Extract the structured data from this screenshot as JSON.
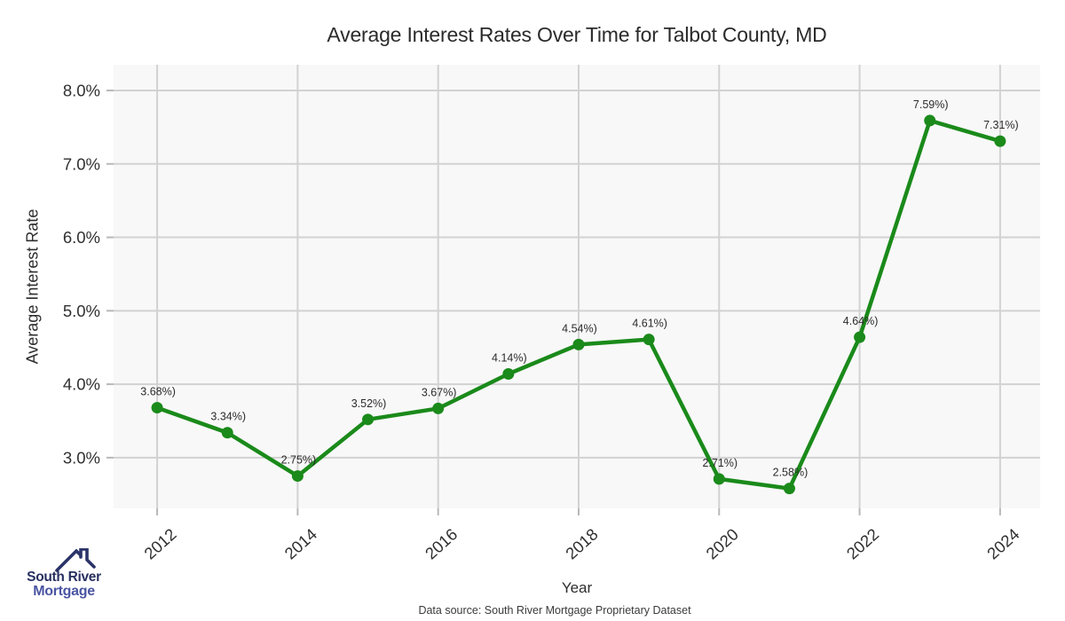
{
  "chart_data": {
    "type": "line",
    "title": "Average Interest Rates Over Time for Talbot County, MD",
    "xlabel": "Year",
    "ylabel": "Average Interest Rate",
    "x": [
      2012,
      2013,
      2014,
      2015,
      2016,
      2017,
      2018,
      2019,
      2020,
      2021,
      2022,
      2023,
      2024
    ],
    "values": [
      3.68,
      3.34,
      2.75,
      3.52,
      3.67,
      4.14,
      4.54,
      4.61,
      2.71,
      2.58,
      4.64,
      7.59,
      7.31
    ],
    "point_labels": [
      "3.68%)",
      "3.34%)",
      "2.75%)",
      "3.52%)",
      "3.67%)",
      "4.14%)",
      "4.54%)",
      "4.61%)",
      "2.71%)",
      "2.58%)",
      "4.64%)",
      "7.59%)",
      "7.31%)"
    ],
    "xtick_values": [
      2012,
      2014,
      2016,
      2018,
      2020,
      2022,
      2024
    ],
    "xtick_labels": [
      "2012",
      "2014",
      "2016",
      "2018",
      "2020",
      "2022",
      "2024"
    ],
    "ytick_values": [
      3,
      4,
      5,
      6,
      7,
      8
    ],
    "ytick_labels": [
      "3.0%",
      "4.0%",
      "5.0%",
      "6.0%",
      "7.0%",
      "8.0%"
    ],
    "xlim": [
      2011.38,
      2024.57
    ],
    "ylim": [
      2.31,
      8.35
    ],
    "grid": true,
    "legend_position": "none",
    "line_color": "#1a8a1a",
    "marker_color": "#1a8a1a",
    "plot_bg_color": "#f8f8f8",
    "grid_color": "#d2d2d2",
    "tick_color": "#b8b8b8",
    "label_text_color": "#2b2b2b",
    "footer": "Data source: South River Mortgage Proprietary Dataset"
  },
  "logo": {
    "line1": "South River",
    "line2": "Mortgage",
    "roof_icon": "house-roof-with-chimney",
    "roof_color": "#2b3468",
    "line1_color": "#27305f",
    "line2_color": "#4a55a2"
  }
}
